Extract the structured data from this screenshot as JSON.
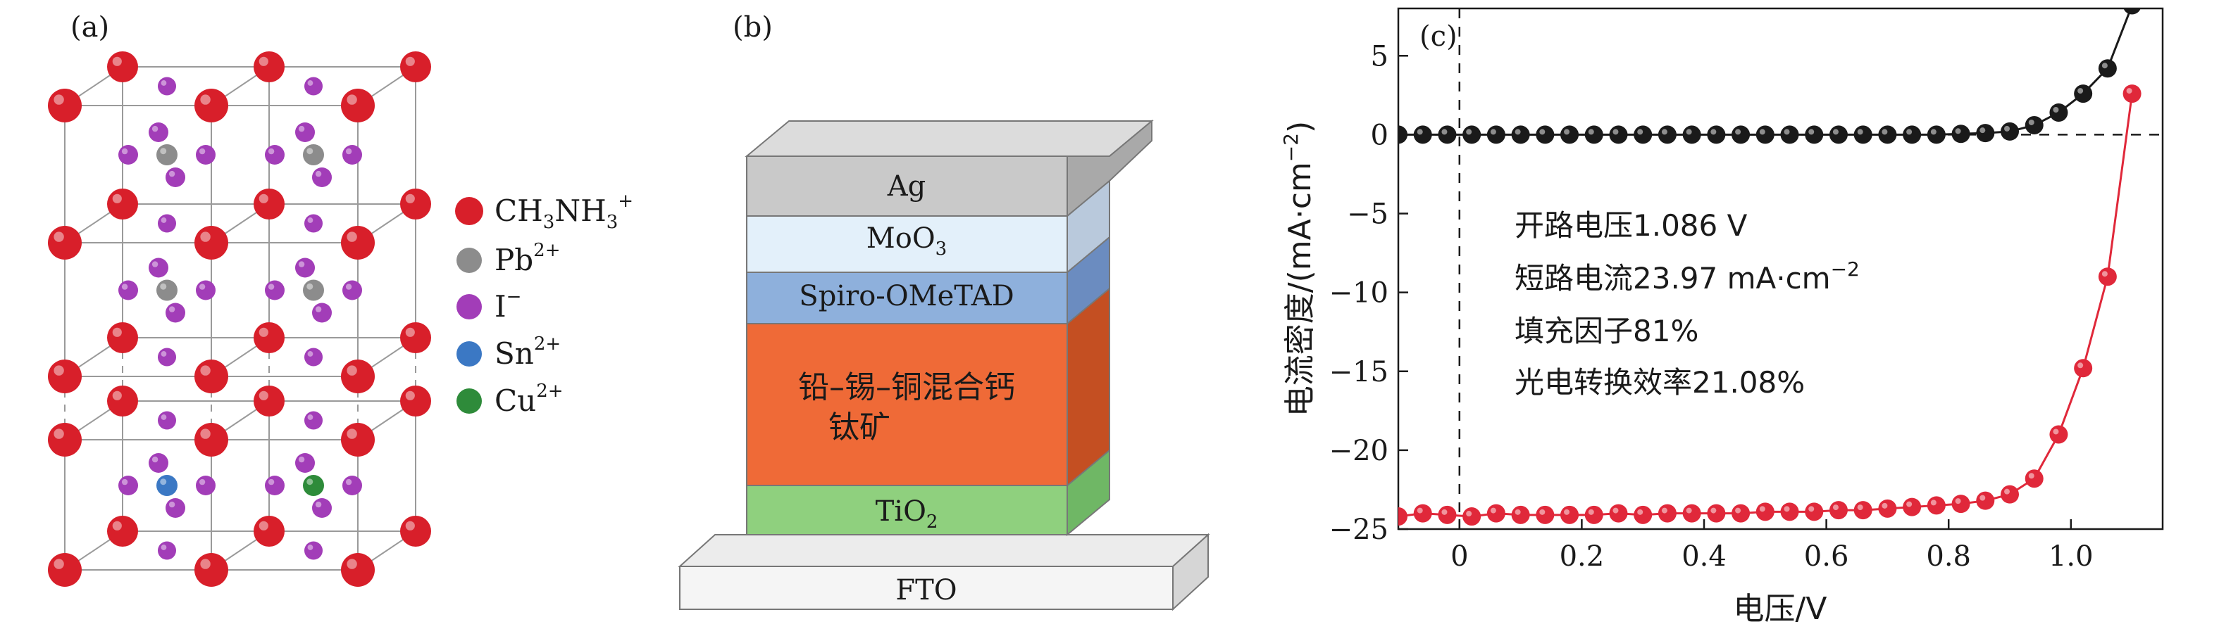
{
  "panel_a": {
    "label": "(a)",
    "legend": [
      {
        "text": "CH3NH3+",
        "html_base": "CH",
        "color": "#d81f2a"
      },
      {
        "text": "Pb2+",
        "color": "#8c8c8c"
      },
      {
        "text": "I−",
        "color": "#a23db8"
      },
      {
        "text": "Sn2+",
        "color": "#3b78c4"
      },
      {
        "text": "Cu2+",
        "color": "#2e8b3a"
      }
    ]
  },
  "panel_b": {
    "label": "(b)",
    "layers": [
      {
        "name": "Ag",
        "color": "#c9c9c9"
      },
      {
        "name": "MoO3",
        "color": "#e3f0fa"
      },
      {
        "name": "Spiro-OMeTAD",
        "color": "#8eb0dc"
      },
      {
        "name": "铅–锡–铜混合钙钛矿",
        "color": "#ef6a37"
      },
      {
        "name": "TiO2",
        "color": "#8fd07e"
      },
      {
        "name": "FTO",
        "color": "#f2f2f2"
      }
    ]
  },
  "chart_data": {
    "type": "line",
    "panel_label": "(c)",
    "xlabel": "电压/V",
    "ylabel": "电流密度/(mA·cm−2)",
    "xlim": [
      -0.1,
      1.15
    ],
    "ylim": [
      -25,
      8
    ],
    "xticks": [
      "0",
      "0.2",
      "0.4",
      "0.6",
      "0.8",
      "1.0"
    ],
    "xtick_values": [
      0,
      0.2,
      0.4,
      0.6,
      0.8,
      1.0
    ],
    "yticks": [
      "5",
      "0",
      "−5",
      "−10",
      "−15",
      "−20",
      "−25"
    ],
    "ytick_values": [
      5,
      0,
      -5,
      -10,
      -15,
      -20,
      -25
    ],
    "annotations": [
      "开路电压1.086 V",
      "短路电流23.97 mA·cm−2",
      "填充因子81%",
      "光电转换效率21.08%"
    ],
    "series": [
      {
        "color": "#1a1a1a",
        "x": [
          -0.1,
          -0.06,
          -0.02,
          0.02,
          0.06,
          0.1,
          0.14,
          0.18,
          0.22,
          0.26,
          0.3,
          0.34,
          0.38,
          0.42,
          0.46,
          0.5,
          0.54,
          0.58,
          0.62,
          0.66,
          0.7,
          0.74,
          0.78,
          0.82,
          0.86,
          0.9,
          0.94,
          0.98,
          1.02,
          1.06,
          1.1
        ],
        "y": [
          0,
          0,
          0,
          0,
          0,
          0,
          0,
          0,
          0,
          0,
          0,
          0,
          0,
          0,
          0,
          0,
          0,
          0,
          0,
          0,
          0,
          0,
          0,
          0.05,
          0.1,
          0.2,
          0.6,
          1.4,
          2.6,
          4.2,
          8.2
        ]
      },
      {
        "color": "#e0283a",
        "x": [
          -0.1,
          -0.06,
          -0.02,
          0.02,
          0.06,
          0.1,
          0.14,
          0.18,
          0.22,
          0.26,
          0.3,
          0.34,
          0.38,
          0.42,
          0.46,
          0.5,
          0.54,
          0.58,
          0.62,
          0.66,
          0.7,
          0.74,
          0.78,
          0.82,
          0.86,
          0.9,
          0.94,
          0.98,
          1.02,
          1.06,
          1.1
        ],
        "y": [
          -24.2,
          -24.0,
          -24.1,
          -24.2,
          -24.0,
          -24.1,
          -24.1,
          -24.1,
          -24.1,
          -24.0,
          -24.1,
          -24.0,
          -24.0,
          -24.0,
          -24.0,
          -23.9,
          -23.9,
          -23.9,
          -23.8,
          -23.8,
          -23.7,
          -23.6,
          -23.5,
          -23.4,
          -23.2,
          -22.8,
          -21.8,
          -19.0,
          -14.8,
          -9.0,
          2.6
        ]
      }
    ]
  }
}
